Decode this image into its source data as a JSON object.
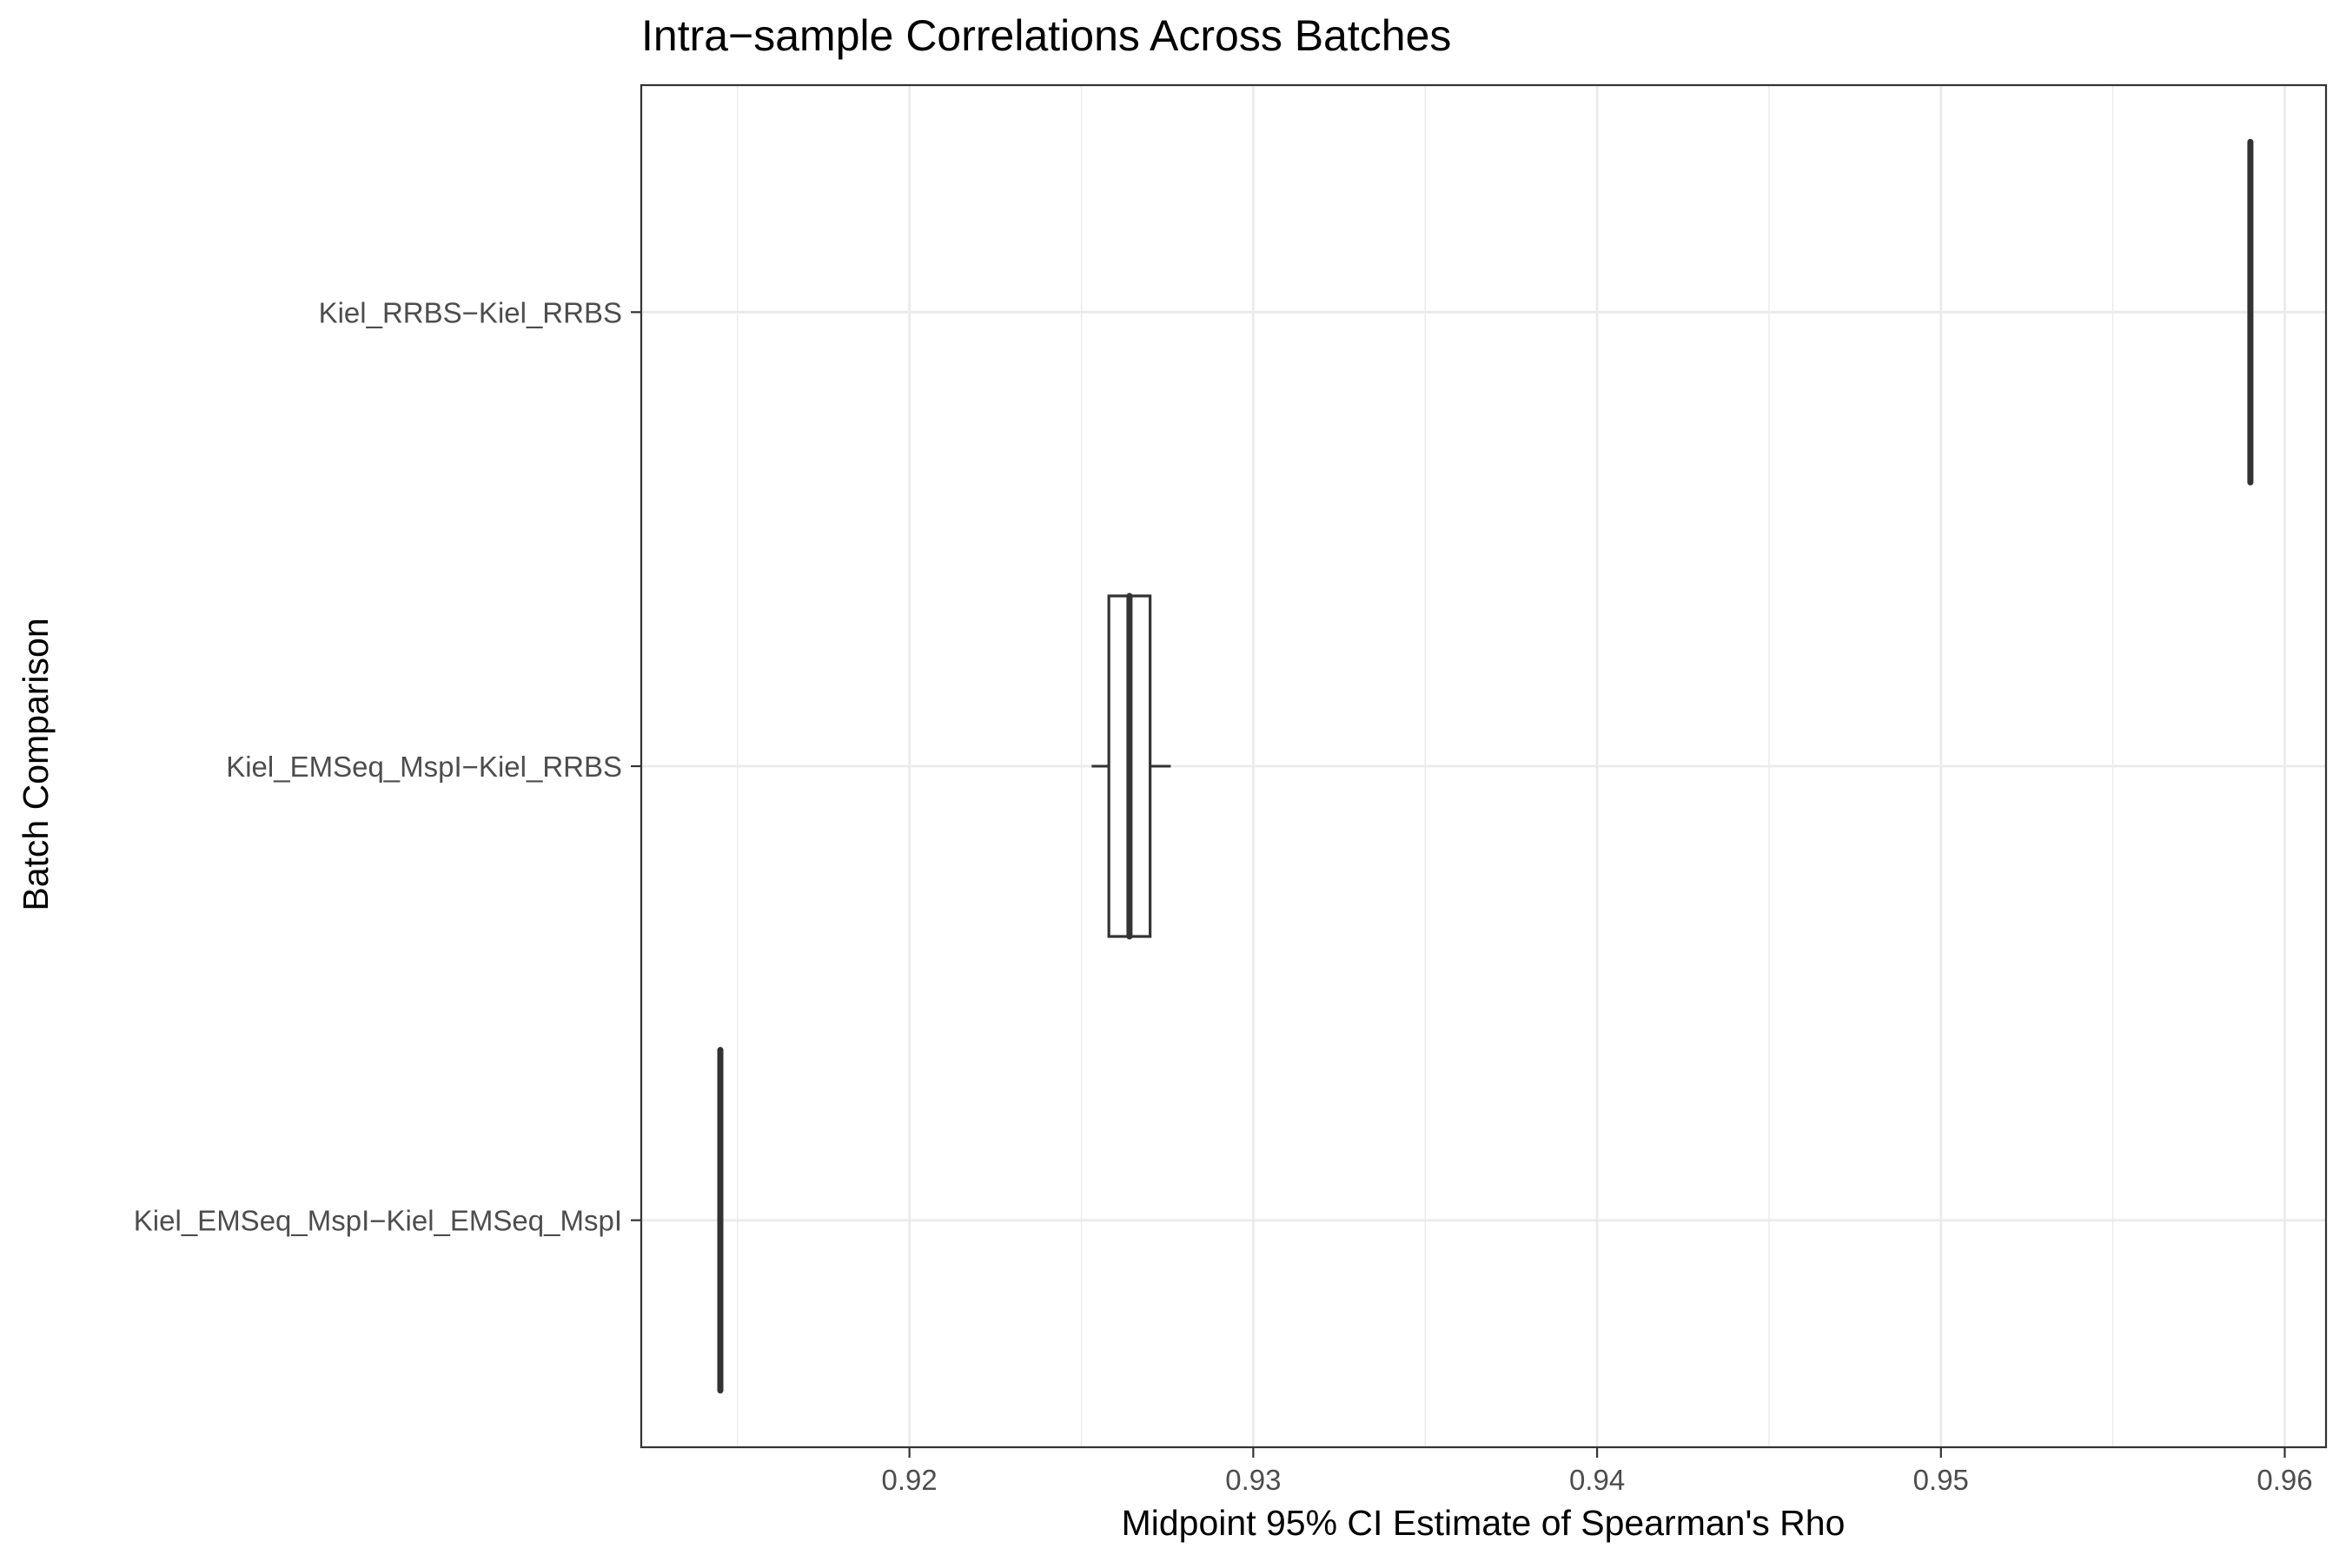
{
  "chart_data": {
    "type": "boxplot",
    "orientation": "horizontal",
    "title": "Intra−sample Correlations Across Batches",
    "xlabel": "Midpoint 95% CI Estimate of Spearman's Rho",
    "ylabel": "Batch Comparison",
    "xlim": [
      0.9122,
      0.9612
    ],
    "x_ticks": [
      {
        "value": 0.92,
        "label": "0.92"
      },
      {
        "value": 0.93,
        "label": "0.93"
      },
      {
        "value": 0.94,
        "label": "0.94"
      },
      {
        "value": 0.95,
        "label": "0.95"
      },
      {
        "value": 0.96,
        "label": "0.96"
      }
    ],
    "categories": [
      "Kiel_RRBS−Kiel_RRBS",
      "Kiel_EMSeq_MspI−Kiel_RRBS",
      "Kiel_EMSeq_MspI−Kiel_EMSeq_MspI"
    ],
    "boxes": [
      {
        "category": "Kiel_RRBS−Kiel_RRBS",
        "whisker_low": 0.959,
        "q1": 0.959,
        "median": 0.959,
        "q3": 0.959,
        "whisker_high": 0.959
      },
      {
        "category": "Kiel_EMSeq_MspI−Kiel_RRBS",
        "whisker_low": 0.9253,
        "q1": 0.9258,
        "median": 0.9264,
        "q3": 0.927,
        "whisker_high": 0.9276
      },
      {
        "category": "Kiel_EMSeq_MspI−Kiel_EMSeq_MspI",
        "whisker_low": 0.9145,
        "q1": 0.9145,
        "median": 0.9145,
        "q3": 0.9145,
        "whisker_high": 0.9145
      }
    ],
    "grid": true,
    "theme": "bw",
    "colors": {
      "box_outline": "#333333",
      "grid": "#ebebeb",
      "panel_border": "#333333",
      "tick_label": "#4d4d4d"
    }
  }
}
